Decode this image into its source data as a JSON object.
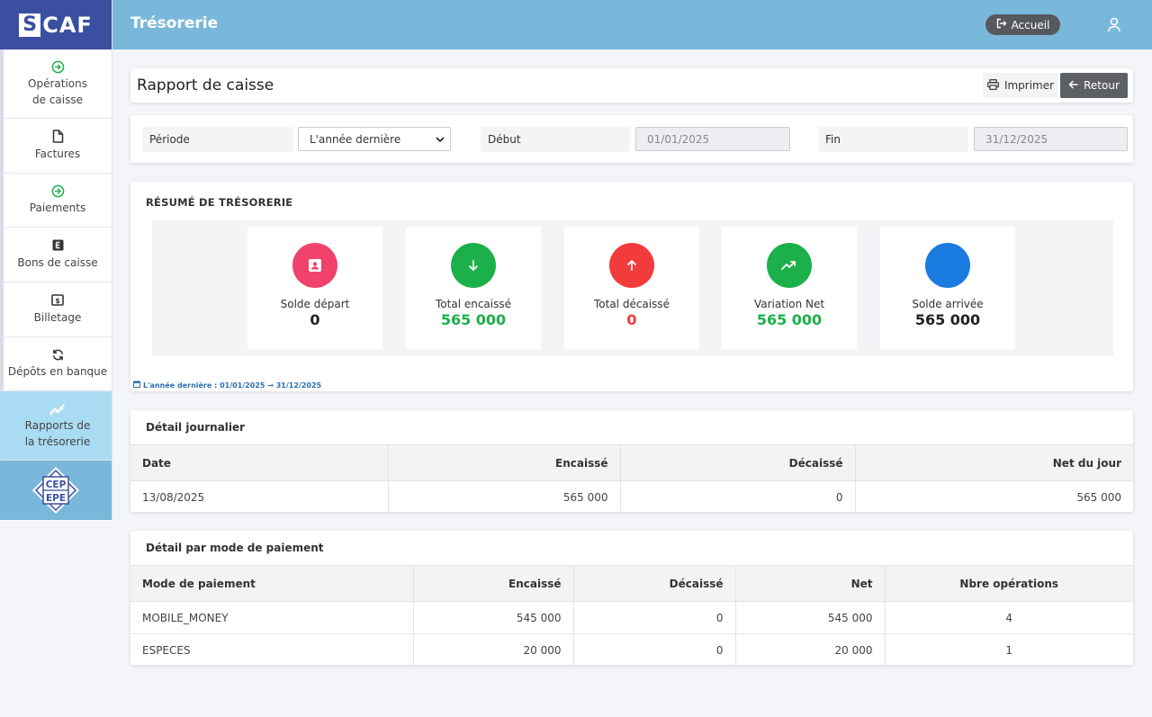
{
  "app": {
    "logo_letter": "S",
    "logo_rest": "CAF",
    "section_title": "Trésorerie"
  },
  "topbar": {
    "home_label": "Accueil"
  },
  "sidebar": {
    "items": [
      {
        "line1": "Opérations",
        "line2": "de caisse",
        "icon": "arrow-circle-icon"
      },
      {
        "line1": "Factures",
        "line2": "",
        "icon": "file-icon"
      },
      {
        "line1": "Paiements",
        "line2": "",
        "icon": "arrow-circle-icon"
      },
      {
        "line1": "Bons de caisse",
        "line2": "",
        "icon": "voucher-icon"
      },
      {
        "line1": "Billetage",
        "line2": "",
        "icon": "banknote-icon"
      },
      {
        "line1": "Dépôts en banque",
        "line2": "",
        "icon": "sync-icon"
      },
      {
        "line1": "Rapports de",
        "line2": "la trésorerie",
        "icon": "chart-line-icon",
        "active": true
      }
    ],
    "badge_line1": "CEP",
    "badge_line2": "EPE"
  },
  "header": {
    "title": "Rapport de caisse",
    "print_label": "Imprimer",
    "back_label": "Retour"
  },
  "filters": {
    "period_label": "Période",
    "period_value": "L'année dernière",
    "start_label": "Début",
    "start_value": "01/01/2025",
    "end_label": "Fin",
    "end_value": "31/12/2025"
  },
  "summary": {
    "title": "RÉSUMÉ DE TRÉSORERIE",
    "kpis": [
      {
        "label": "Solde départ",
        "value": "0",
        "color": "#f0426a",
        "value_color": "#222222",
        "icon": "badge-icon"
      },
      {
        "label": "Total encaissé",
        "value": "565 000",
        "color": "#1cb04a",
        "value_color": "#1cb04a",
        "icon": "arrow-down-icon"
      },
      {
        "label": "Total décaissé",
        "value": "0",
        "color": "#f23b3b",
        "value_color": "#f23b3b",
        "icon": "arrow-up-icon"
      },
      {
        "label": "Variation Net",
        "value": "565 000",
        "color": "#1cb04a",
        "value_color": "#1cb04a",
        "icon": "trend-up-icon"
      },
      {
        "label": "Solde arrivée",
        "value": "565 000",
        "color": "#1a7be0",
        "value_color": "#222222",
        "icon": ""
      }
    ],
    "period_note": "L'année dernière : 01/01/2025 → 31/12/2025"
  },
  "daily": {
    "title": "Détail journalier",
    "columns": [
      "Date",
      "Encaissé",
      "Décaissé",
      "Net du jour"
    ],
    "rows": [
      [
        "13/08/2025",
        "565 000",
        "0",
        "565 000"
      ]
    ]
  },
  "by_mode": {
    "title": "Détail par mode de paiement",
    "columns": [
      "Mode de paiement",
      "Encaissé",
      "Décaissé",
      "Net",
      "Nbre opérations"
    ],
    "rows": [
      [
        "MOBILE_MONEY",
        "545 000",
        "0",
        "545 000",
        "4"
      ],
      [
        "ESPECES",
        "20 000",
        "0",
        "20 000",
        "1"
      ]
    ]
  }
}
